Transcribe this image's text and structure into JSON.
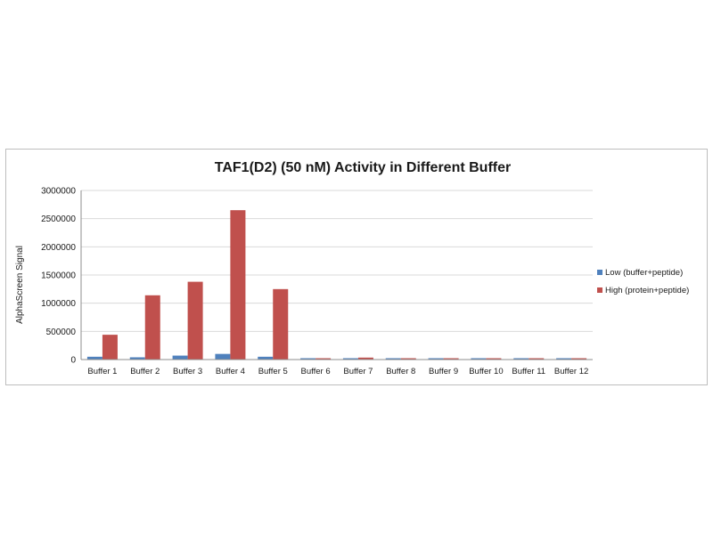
{
  "chart_data": {
    "type": "bar",
    "title": "TAF1(D2) (50 nM) Activity in Different Buffer",
    "xlabel": "",
    "ylabel": "AlphaScreen Signal",
    "ylim": [
      0,
      3000000
    ],
    "yticks": [
      "0",
      "500000",
      "1000000",
      "1500000",
      "2000000",
      "2500000",
      "3000000"
    ],
    "grid": true,
    "legend_position": "right",
    "categories": [
      "Buffer 1",
      "Buffer 2",
      "Buffer 3",
      "Buffer 4",
      "Buffer 5",
      "Buffer 6",
      "Buffer 7",
      "Buffer 8",
      "Buffer 9",
      "Buffer 10",
      "Buffer 11",
      "Buffer 12"
    ],
    "series": [
      {
        "name": "Low (buffer+peptide)",
        "color": "#4f81bd",
        "values": [
          50000,
          40000,
          70000,
          100000,
          50000,
          5000,
          20000,
          5000,
          3000,
          3000,
          3000,
          3000
        ]
      },
      {
        "name": "High (protein+peptide)",
        "color": "#c0504d",
        "values": [
          440000,
          1140000,
          1380000,
          2650000,
          1250000,
          10000,
          35000,
          5000,
          3000,
          5000,
          3000,
          3000
        ]
      }
    ]
  }
}
